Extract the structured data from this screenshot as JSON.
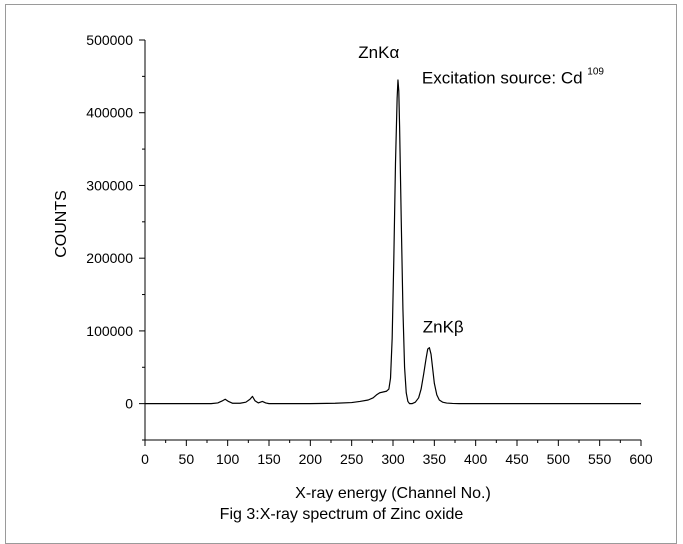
{
  "caption": "Fig 3:X-ray spectrum of Zinc oxide",
  "chart_data": {
    "type": "line",
    "title": "",
    "xlabel": "X-ray energy (Channel No.)",
    "ylabel": "COUNTS",
    "xlim": [
      0,
      600
    ],
    "ylim": [
      -50000,
      500000
    ],
    "x_ticks": [
      0,
      50,
      100,
      150,
      200,
      250,
      300,
      350,
      400,
      450,
      500,
      550,
      600
    ],
    "y_ticks": [
      0,
      100000,
      200000,
      300000,
      400000,
      500000
    ],
    "grid": false,
    "series": [
      {
        "x": [
          0,
          80,
          88,
          93,
          97,
          101,
          106,
          115,
          122,
          127,
          130,
          133,
          137,
          142,
          146,
          150,
          170,
          200,
          230,
          250,
          260,
          270,
          276,
          280,
          284,
          288,
          292,
          295,
          297,
          299,
          301,
          303,
          305,
          306,
          307,
          308,
          310,
          312,
          314,
          316,
          318,
          320,
          323,
          327,
          331,
          334,
          337,
          340,
          342,
          344,
          346,
          348,
          350,
          353,
          356,
          360,
          365,
          372,
          380,
          400,
          450,
          500,
          550,
          600
        ],
        "y": [
          0,
          0,
          1000,
          3500,
          6000,
          3000,
          500,
          500,
          2000,
          6000,
          10000,
          4000,
          1000,
          3000,
          1000,
          0,
          0,
          0,
          500,
          1500,
          3000,
          5000,
          8000,
          12000,
          15000,
          16000,
          17000,
          20000,
          35000,
          90000,
          200000,
          330000,
          420000,
          445000,
          430000,
          380000,
          250000,
          130000,
          50000,
          15000,
          3000,
          0,
          0,
          2000,
          8000,
          20000,
          40000,
          62000,
          75000,
          77000,
          68000,
          48000,
          28000,
          12000,
          5000,
          2000,
          800,
          300,
          0,
          0,
          0,
          0,
          0,
          0
        ]
      }
    ],
    "annotations": [
      {
        "text": "ZnKα",
        "x": 258,
        "y": 475000
      },
      {
        "text": "Excitation source: Cd ",
        "superscript": "109",
        "x": 335,
        "y": 440000
      },
      {
        "text": "ZnKβ",
        "x": 336,
        "y": 98000
      }
    ]
  }
}
